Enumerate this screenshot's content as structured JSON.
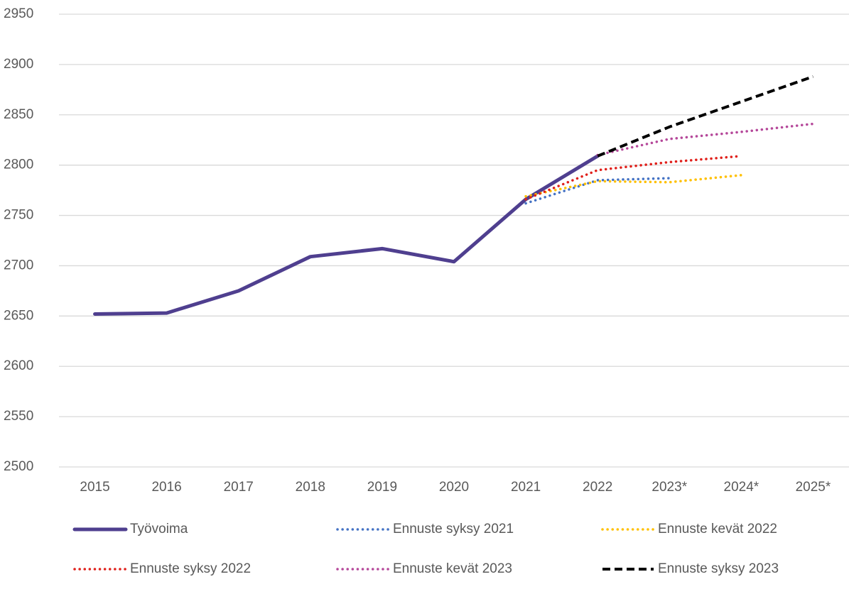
{
  "chart_data": {
    "type": "line",
    "categories": [
      "2015",
      "2016",
      "2017",
      "2018",
      "2019",
      "2020",
      "2021",
      "2022",
      "2023*",
      "2024*",
      "2025*"
    ],
    "series": [
      {
        "name": "Työvoima",
        "color": "#4f3f8f",
        "style": "solid",
        "values": [
          2652,
          2653,
          2675,
          2709,
          2717,
          2704,
          2766,
          2809,
          null,
          null,
          null
        ]
      },
      {
        "name": "Ennuste syksy 2021",
        "color": "#4472c4",
        "style": "dotted",
        "values": [
          null,
          null,
          null,
          null,
          null,
          null,
          2762,
          2785,
          2787,
          null,
          null
        ]
      },
      {
        "name": "Ennuste kevät 2022",
        "color": "#ffc000",
        "style": "dotted",
        "values": [
          null,
          null,
          null,
          null,
          null,
          null,
          2769,
          2784,
          2783,
          2790,
          null
        ]
      },
      {
        "name": "Ennuste syksy 2022",
        "color": "#e0201b",
        "style": "dotted",
        "values": [
          null,
          null,
          null,
          null,
          null,
          null,
          2766,
          2795,
          2803,
          2809,
          null
        ]
      },
      {
        "name": "Ennuste kevät 2023",
        "color": "#b5489a",
        "style": "dotted",
        "values": [
          null,
          null,
          null,
          null,
          null,
          null,
          null,
          2810,
          2826,
          2833,
          2841
        ]
      },
      {
        "name": "Ennuste syksy 2023",
        "color": "#000000",
        "style": "dashed",
        "values": [
          null,
          null,
          null,
          null,
          null,
          null,
          null,
          2809,
          2838,
          2863,
          2888
        ]
      }
    ],
    "ylim": [
      2500,
      2950
    ],
    "yticks": [
      2500,
      2550,
      2600,
      2650,
      2700,
      2750,
      2800,
      2850,
      2900,
      2950
    ],
    "grid": true,
    "legend": "bottom"
  }
}
